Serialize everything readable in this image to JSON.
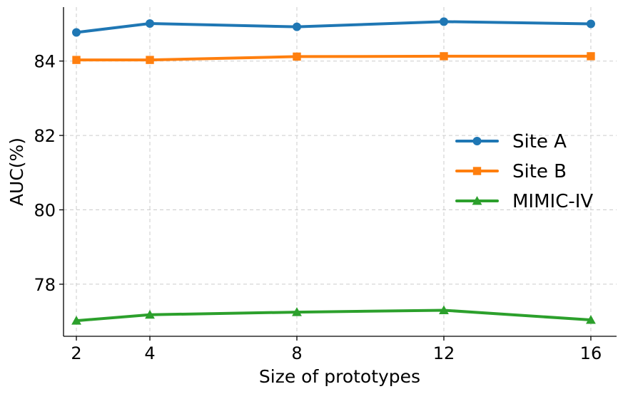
{
  "chart_data": {
    "type": "line",
    "title": "",
    "xlabel": "Size of prototypes",
    "ylabel": "AUC(%)",
    "x": [
      2,
      4,
      8,
      12,
      16
    ],
    "x_tick_labels": [
      "2",
      "4",
      "8",
      "12",
      "16"
    ],
    "xlim": [
      1.65,
      16.7
    ],
    "ylim": [
      76.6,
      85.45
    ],
    "y_ticks": [
      78,
      80,
      82,
      84
    ],
    "y_tick_labels": [
      "78",
      "80",
      "82",
      "84"
    ],
    "grid": true,
    "legend_position": "center-right",
    "series": [
      {
        "name": "Site A",
        "marker": "circle",
        "color": "#1f77b4",
        "values": [
          84.77,
          85.01,
          84.92,
          85.06,
          85.0
        ]
      },
      {
        "name": "Site B",
        "marker": "square",
        "color": "#ff7f0e",
        "values": [
          84.03,
          84.03,
          84.12,
          84.13,
          84.13
        ]
      },
      {
        "name": "MIMIC-IV",
        "marker": "triangle",
        "color": "#2ca02c",
        "values": [
          77.02,
          77.18,
          77.25,
          77.3,
          77.04
        ]
      }
    ]
  }
}
